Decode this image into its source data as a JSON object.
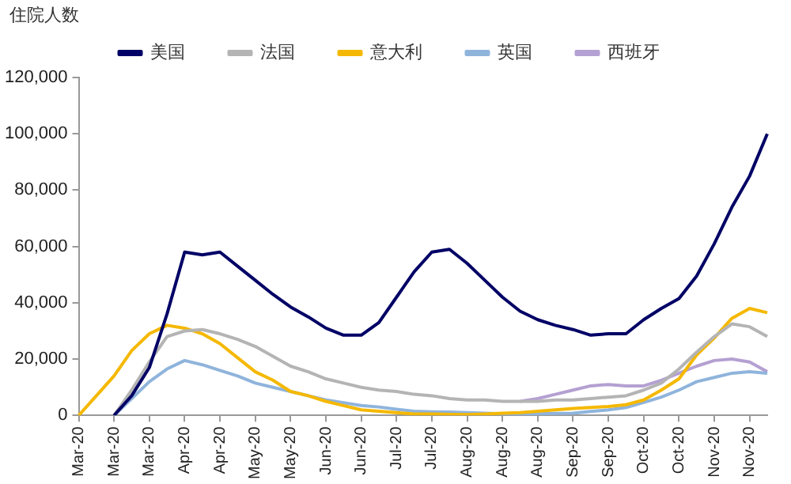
{
  "chart_data": {
    "type": "line",
    "ylabel": "住院人数",
    "legend": "top",
    "grid": false,
    "marker": "none",
    "line_style": "solid",
    "categories": [
      "Mar-20",
      null,
      "Mar-20",
      null,
      "Mar-20",
      null,
      "Apr-20",
      null,
      "Apr-20",
      null,
      "May-20",
      null,
      "May-20",
      null,
      "Jun-20",
      null,
      "Jun-20",
      null,
      "Jul-20",
      null,
      "Jul-20",
      null,
      "Aug-20",
      null,
      "Aug-20",
      null,
      "Aug-20",
      null,
      "Sep-20",
      null,
      "Sep-20",
      null,
      "Oct-20",
      null,
      "Oct-20",
      null,
      "Nov-20",
      null,
      "Nov-20",
      null
    ],
    "ylim": [
      0,
      120000
    ],
    "yticks": [
      {
        "value": 0,
        "label": "0"
      },
      {
        "value": 20000,
        "label": "20,000"
      },
      {
        "value": 40000,
        "label": "40,000"
      },
      {
        "value": 60000,
        "label": "60,000"
      },
      {
        "value": 80000,
        "label": "80,000"
      },
      {
        "value": 100000,
        "label": "100,000"
      },
      {
        "value": 120000,
        "label": "120,000"
      }
    ],
    "series": [
      {
        "name": "美国",
        "color": "#000066",
        "values": [
          null,
          null,
          0,
          7000,
          17000,
          36000,
          58000,
          57000,
          58000,
          53000,
          48000,
          43000,
          38500,
          35000,
          31000,
          28500,
          28500,
          33000,
          42000,
          51000,
          58000,
          59000,
          54000,
          48000,
          42000,
          37000,
          34000,
          32000,
          30500,
          28500,
          29000,
          29000,
          34000,
          38000,
          41500,
          49500,
          61000,
          74000,
          85000,
          100000
        ]
      },
      {
        "name": "法国",
        "color": "#b4b4b4",
        "values": [
          null,
          null,
          0,
          9000,
          19000,
          28000,
          30000,
          30500,
          29000,
          27000,
          24500,
          21000,
          17500,
          15500,
          13000,
          11500,
          10000,
          9000,
          8500,
          7500,
          7000,
          6000,
          5500,
          5500,
          5000,
          5000,
          5000,
          5500,
          5500,
          6000,
          6500,
          7000,
          9000,
          11500,
          16500,
          22500,
          28000,
          32500,
          31500,
          28000
        ]
      },
      {
        "name": "意大利",
        "color": "#f5b800",
        "values": [
          0,
          7000,
          14000,
          23000,
          29000,
          32000,
          31000,
          29000,
          25500,
          20500,
          15500,
          12500,
          8500,
          7000,
          5000,
          3500,
          2000,
          1500,
          1000,
          500,
          500,
          400,
          300,
          500,
          800,
          1000,
          1500,
          2000,
          2500,
          2800,
          3200,
          3800,
          5500,
          9000,
          13000,
          21500,
          27500,
          34500,
          38000,
          36500
        ]
      },
      {
        "name": "英国",
        "color": "#8fb4dc",
        "values": [
          null,
          null,
          0,
          6000,
          12000,
          16500,
          19500,
          18000,
          16000,
          14000,
          11500,
          10000,
          8500,
          7000,
          5500,
          4500,
          3500,
          3000,
          2200,
          1500,
          1300,
          1200,
          1000,
          800,
          600,
          500,
          600,
          700,
          800,
          1400,
          2000,
          2800,
          4600,
          6500,
          9000,
          12000,
          13500,
          15000,
          15500,
          15000
        ]
      },
      {
        "name": "西班牙",
        "color": "#b4a0d2",
        "values": [
          null,
          null,
          null,
          null,
          null,
          null,
          null,
          null,
          null,
          null,
          null,
          null,
          null,
          null,
          null,
          null,
          null,
          null,
          null,
          null,
          null,
          null,
          null,
          null,
          null,
          5000,
          6000,
          7500,
          9000,
          10500,
          11000,
          10500,
          10500,
          12500,
          15000,
          17500,
          19500,
          20000,
          19000,
          15500
        ]
      }
    ]
  }
}
